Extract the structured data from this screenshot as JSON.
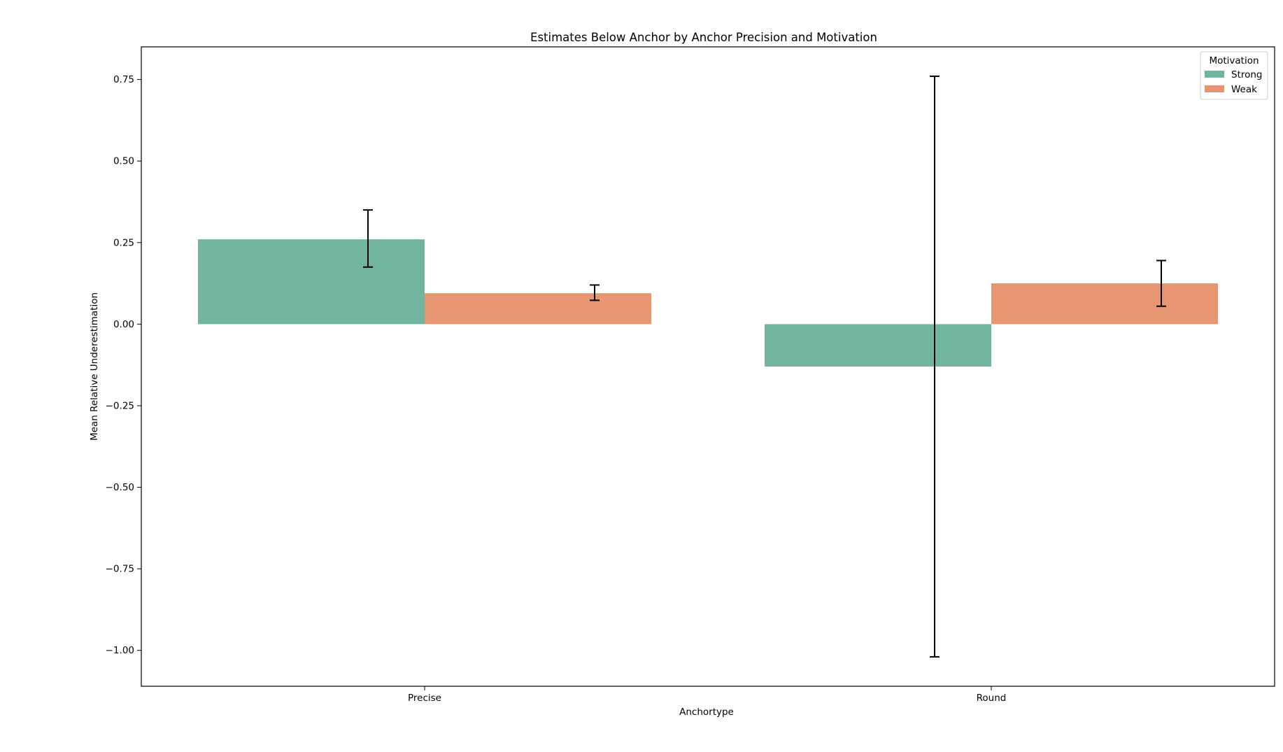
{
  "chart_data": {
    "type": "bar",
    "title": "Estimates Below Anchor by Anchor Precision and Motivation",
    "xlabel": "Anchortype",
    "ylabel": "Mean Relative Underestimation",
    "categories": [
      "Precise",
      "Round"
    ],
    "ylim": [
      -1.11,
      0.85
    ],
    "yticks": [
      0.75,
      0.5,
      0.25,
      0.0,
      -0.25,
      -0.5,
      -0.75,
      -1.0
    ],
    "ytick_labels": [
      "0.75",
      "0.50",
      "0.25",
      "0.00",
      "−0.25",
      "−0.50",
      "−0.75",
      "−1.00"
    ],
    "grid": false,
    "legend": {
      "title": "Motivation",
      "position": "top-right"
    },
    "series": [
      {
        "name": "Strong",
        "color": "#72b59f",
        "values": [
          0.26,
          -0.13
        ],
        "error_low": [
          0.175,
          -1.02
        ],
        "error_high": [
          0.35,
          0.76
        ]
      },
      {
        "name": "Weak",
        "color": "#e89672",
        "values": [
          0.095,
          0.125
        ],
        "error_low": [
          0.073,
          0.055
        ],
        "error_high": [
          0.12,
          0.195
        ]
      }
    ]
  }
}
